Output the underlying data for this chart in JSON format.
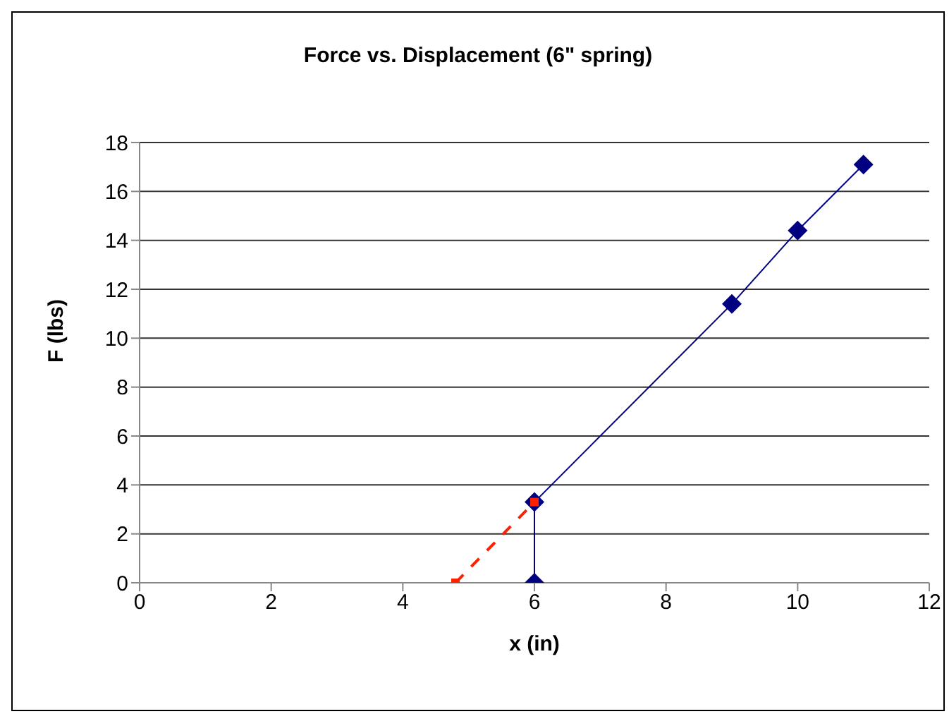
{
  "chart_data": {
    "type": "line",
    "title": "Force vs. Displacement (6\" spring)",
    "xlabel": "x (in)",
    "ylabel": "F (lbs)",
    "series": [
      {
        "x": [
          6,
          6,
          9,
          10,
          11
        ],
        "values": [
          0,
          3.3,
          11.4,
          14.4,
          17.1
        ],
        "color": "#000080",
        "marker": "diamond",
        "line_style": "solid"
      },
      {
        "x": [
          4.8,
          6
        ],
        "values": [
          0,
          3.3
        ],
        "color": "#ff2000",
        "marker": "square",
        "line_style": "dashed"
      }
    ],
    "xlim": [
      0,
      12
    ],
    "xticks": [
      0,
      2,
      4,
      6,
      8,
      10,
      12
    ],
    "ylim": [
      0,
      18
    ],
    "yticks": [
      0,
      2,
      4,
      6,
      8,
      10,
      12,
      14,
      16,
      18
    ],
    "grid": "y"
  }
}
